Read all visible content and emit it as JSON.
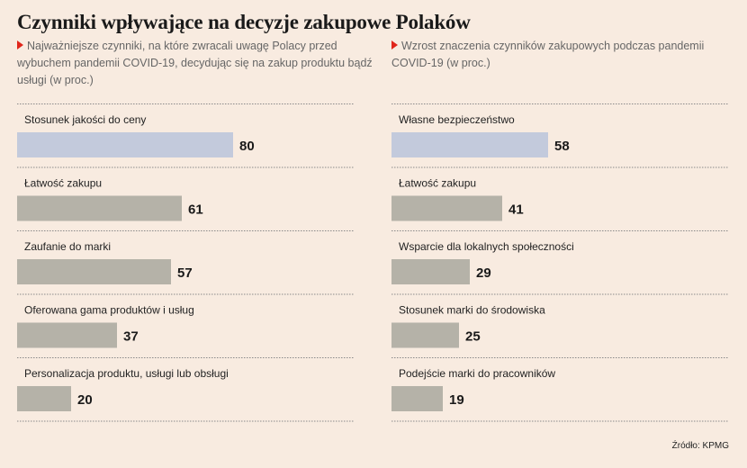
{
  "title": "Czynniki wpływające na decyzje zakupowe Polaków",
  "source": "Źródło: KPMG",
  "chart_data": [
    {
      "type": "bar",
      "orientation": "horizontal",
      "subtitle": "Najważniejsze czynniki, na które zwracali uwagę Polacy przed wybuchem pandemii COVID-19, decydując się na zakup produktu bądź usługi (w proc.)",
      "categories": [
        "Stosunek jakości do ceny",
        "Łatwość zakupu",
        "Zaufanie do marki",
        "Oferowana gama produktów i usług",
        "Personalizacja produktu, usługi lub obsługi"
      ],
      "values": [
        80,
        61,
        57,
        37,
        20
      ],
      "highlight_index": 0,
      "xlim": [
        0,
        100
      ]
    },
    {
      "type": "bar",
      "orientation": "horizontal",
      "subtitle": "Wzrost znaczenia czynników zakupowych podczas pandemii COVID-19 (w proc.)",
      "categories": [
        "Własne bezpieczeństwo",
        "Łatwość zakupu",
        "Wsparcie dla lokalnych społeczności",
        "Stosunek marki do środowiska",
        "Podejście marki do pracowników"
      ],
      "values": [
        58,
        41,
        29,
        25,
        19
      ],
      "highlight_index": 0,
      "xlim": [
        0,
        100
      ]
    }
  ],
  "colors": {
    "highlight_bar": "#c3cadc",
    "bar": "#b5b2a8",
    "divider": "#8a8a8a",
    "accent": "#e0261b"
  }
}
